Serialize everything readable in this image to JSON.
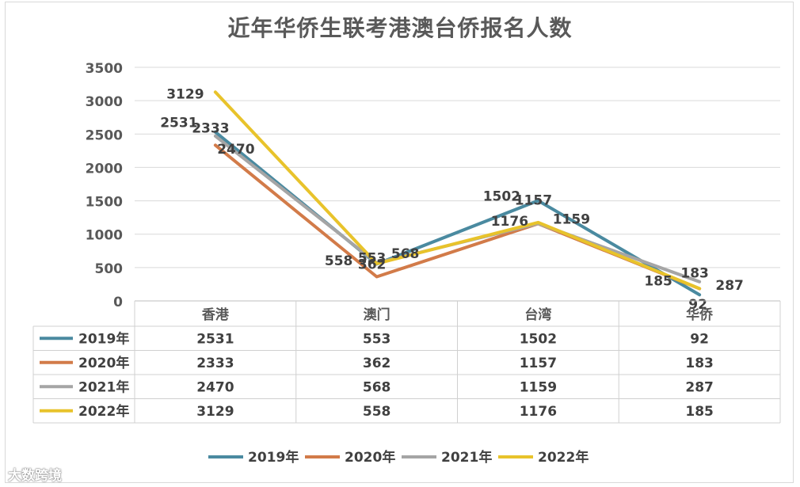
{
  "watermark": "大数跨境",
  "chart_data": {
    "type": "line",
    "title": "近年华侨生联考港澳台侨报名人数",
    "categories": [
      "香港",
      "澳门",
      "台湾",
      "华侨"
    ],
    "ylim": [
      0,
      3500
    ],
    "yticks": [
      0,
      500,
      1000,
      1500,
      2000,
      2500,
      3000,
      3500
    ],
    "grid": true,
    "legend_position": "bottom",
    "data_table": true,
    "series": [
      {
        "name": "2019年",
        "color": "#4a8aa0",
        "values": [
          2531,
          553,
          1502,
          92
        ]
      },
      {
        "name": "2020年",
        "color": "#d27b49",
        "values": [
          2333,
          362,
          1157,
          183
        ]
      },
      {
        "name": "2021年",
        "color": "#a5a5a5",
        "values": [
          2470,
          568,
          1159,
          287
        ]
      },
      {
        "name": "2022年",
        "color": "#e8c32b",
        "values": [
          3129,
          558,
          1176,
          185
        ]
      }
    ]
  }
}
